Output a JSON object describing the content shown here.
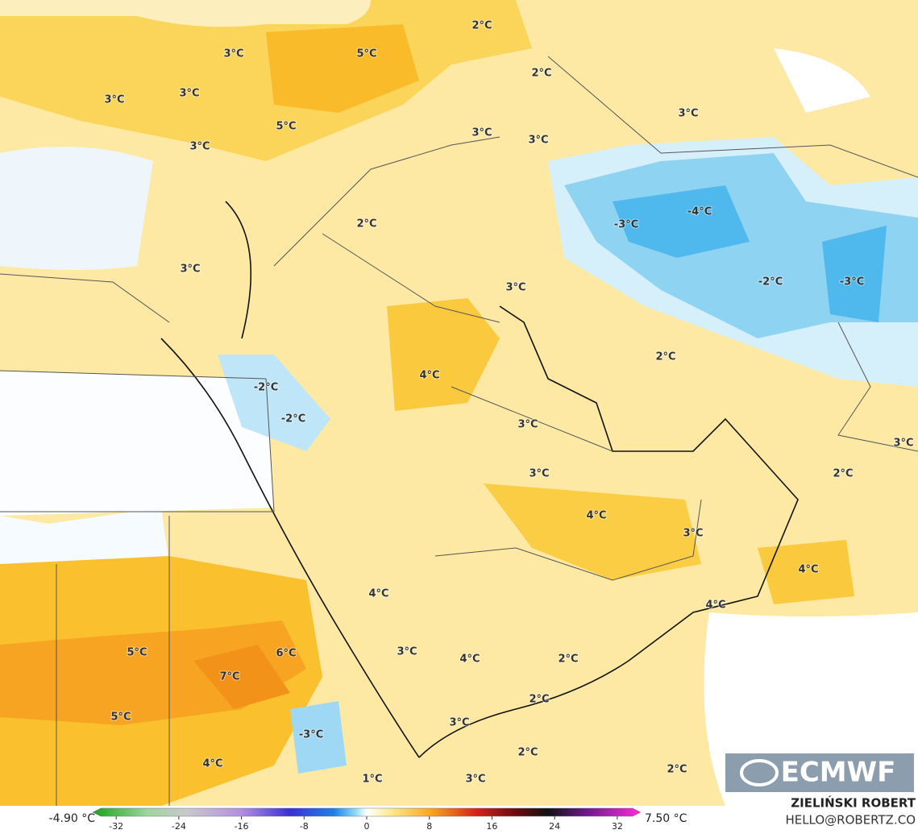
{
  "map": {
    "labels": [
      "3°C",
      "5°C",
      "2°C",
      "2°C",
      "3°C",
      "3°C",
      "5°C",
      "3°C",
      "3°C",
      "3°C",
      "3°C",
      "2°C",
      "-3°C",
      "-4°C",
      "3°C",
      "3°C",
      "-2°C",
      "-3°C",
      "2°C",
      "4°C",
      "-2°C",
      "-2°C",
      "3°C",
      "3°C",
      "3°C",
      "2°C",
      "4°C",
      "3°C",
      "4°C",
      "4°C",
      "4°C",
      "5°C",
      "6°C",
      "3°C",
      "4°C",
      "2°C",
      "7°C",
      "5°C",
      "2°C",
      "-3°C",
      "3°C",
      "4°C",
      "2°C",
      "2°C",
      "1°C",
      "3°C"
    ],
    "colorbar": {
      "min_label": "-4.90 °C",
      "max_label": "7.50 °C",
      "lim": [
        -35,
        35
      ],
      "ticks": [
        -32,
        -24,
        -16,
        -8,
        0,
        8,
        16,
        24,
        32
      ]
    }
  },
  "credit": {
    "logo": "ECMWF",
    "author": "ZIELIŃSKI ROBERT",
    "contact": "HELLO@ROBERTZ.CO"
  }
}
